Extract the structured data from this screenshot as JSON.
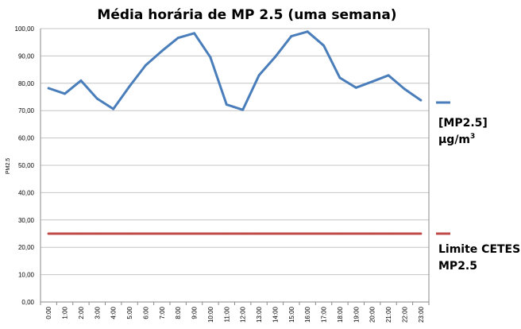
{
  "chart_data": {
    "type": "line",
    "title": "Média horária de MP 2.5 (uma semana)",
    "xlabel": "",
    "ylabel": "PM2.5",
    "categories": [
      "0:00",
      "1:00",
      "2:00",
      "3:00",
      "4:00",
      "5:00",
      "6:00",
      "7:00",
      "8:00",
      "9:00",
      "10:00",
      "11:00",
      "12:00",
      "13:00",
      "14:00",
      "15:00",
      "16:00",
      "17:00",
      "18:00",
      "19:00",
      "20:00",
      "21:00",
      "22:00",
      "23:00"
    ],
    "ylim": [
      0,
      100
    ],
    "yticks": [
      "0,00",
      "10,00",
      "20,00",
      "30,00",
      "40,00",
      "50,00",
      "60,00",
      "70,00",
      "80,00",
      "90,00",
      "100,00"
    ],
    "grid": true,
    "legend_position": "right",
    "series": [
      {
        "name": "[MP2.5] µg/m³",
        "legend_lines": [
          "[MP2.5]",
          "µg/m",
          "3"
        ],
        "color": "#4a7ebb",
        "values": [
          78.2,
          76.2,
          81.0,
          74.4,
          70.6,
          78.9,
          86.6,
          91.8,
          96.6,
          98.3,
          89.5,
          72.2,
          70.3,
          82.9,
          89.6,
          97.2,
          98.9,
          93.8,
          82.0,
          78.4,
          80.6,
          82.9,
          77.9,
          73.8
        ]
      },
      {
        "name": "Limite CETESB MP2.5",
        "legend_lines": [
          "Limite CETESB",
          "MP2.5"
        ],
        "color": "#be4b48",
        "values": [
          25,
          25,
          25,
          25,
          25,
          25,
          25,
          25,
          25,
          25,
          25,
          25,
          25,
          25,
          25,
          25,
          25,
          25,
          25,
          25,
          25,
          25,
          25,
          25
        ]
      }
    ]
  }
}
